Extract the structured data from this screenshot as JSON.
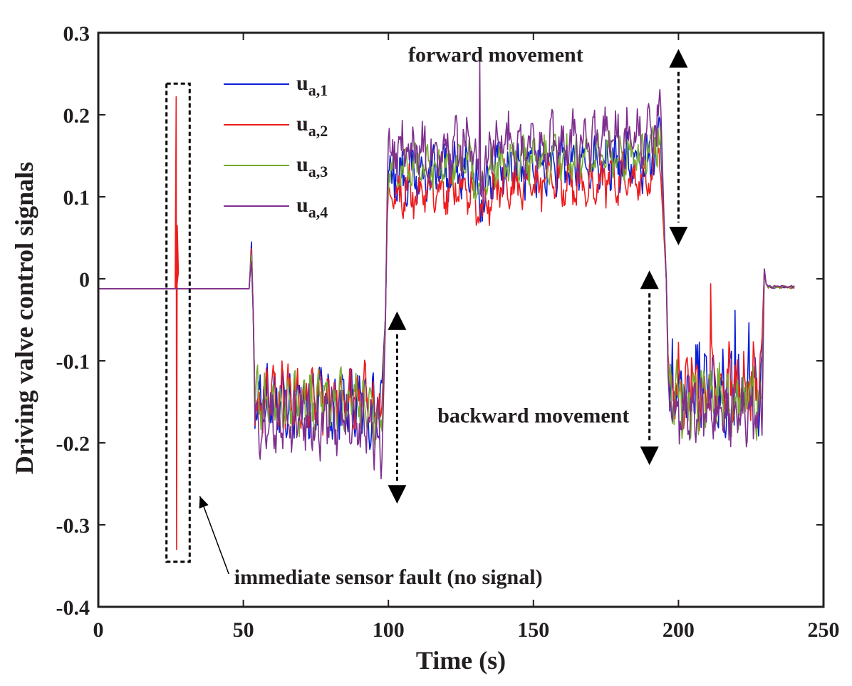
{
  "chart_data": {
    "type": "line",
    "xlabel": "Time (s)",
    "ylabel": "Driving valve control signals",
    "xlim": [
      0,
      250
    ],
    "ylim": [
      -0.4,
      0.3
    ],
    "xticks": [
      "0",
      "50",
      "100",
      "150",
      "200",
      "250"
    ],
    "yticks": [
      "0.3",
      "0.2",
      "0.1",
      "0",
      "-0.1",
      "-0.2",
      "-0.3",
      "-0.4"
    ],
    "grid": false,
    "legend_position": "top-left",
    "series": [
      {
        "name": "u_a,1",
        "base": "u",
        "sub": "a,1",
        "color": "#0a1fd6",
        "fault": false,
        "levels": {
          "idle": -0.012,
          "backward": -0.15,
          "forward": 0.125,
          "backward2": -0.135,
          "end": -0.01
        },
        "noise": {
          "backward": 0.028,
          "forward": 0.022,
          "backward2": 0.035
        }
      },
      {
        "name": "u_a,2",
        "base": "u",
        "sub": "a,2",
        "color": "#ee1c1c",
        "fault": true,
        "levels": {
          "idle": -0.012,
          "backward": -0.145,
          "forward": 0.105,
          "backward2": -0.13,
          "end": -0.01
        },
        "noise": {
          "backward": 0.026,
          "forward": 0.02,
          "backward2": 0.032
        }
      },
      {
        "name": "u_a,3",
        "base": "u",
        "sub": "a,3",
        "color": "#77ac30",
        "fault": false,
        "levels": {
          "idle": -0.012,
          "backward": -0.15,
          "forward": 0.135,
          "backward2": -0.145,
          "end": -0.01
        },
        "noise": {
          "backward": 0.024,
          "forward": 0.018,
          "backward2": 0.03
        }
      },
      {
        "name": "u_a,4",
        "base": "u",
        "sub": "a,4",
        "color": "#7e2f8e",
        "fault": false,
        "levels": {
          "idle": -0.012,
          "backward": -0.175,
          "forward": 0.155,
          "backward2": -0.165,
          "end": -0.01
        },
        "noise": {
          "backward": 0.026,
          "forward": 0.024,
          "backward2": 0.026
        }
      }
    ],
    "phases": [
      {
        "label": "idle",
        "x": [
          0,
          52
        ]
      },
      {
        "label": "backward",
        "x": [
          54,
          98
        ]
      },
      {
        "label": "forward",
        "x": [
          100,
          194
        ]
      },
      {
        "label": "backward2",
        "x": [
          197,
          229
        ]
      },
      {
        "label": "end",
        "x": [
          231,
          240
        ]
      }
    ],
    "fault_spike": {
      "x": 27,
      "min": -0.33,
      "max": 0.222
    },
    "fault_box": {
      "x": [
        23.5,
        31.5
      ],
      "y": [
        -0.345,
        0.238
      ]
    },
    "annotations": [
      {
        "text": "forward movement",
        "x": 137,
        "y": 0.265
      },
      {
        "text": "backward movement",
        "x": 150,
        "y": -0.175
      },
      {
        "text": "immediate sensor fault (no signal)",
        "x": 100,
        "y": -0.372
      }
    ],
    "double_arrows": [
      {
        "x": 103,
        "y1": -0.052,
        "y2": -0.262
      },
      {
        "x": 190,
        "y1": -0.002,
        "y2": -0.215
      },
      {
        "x": 200,
        "y1": 0.268,
        "y2": 0.053
      }
    ],
    "pointer_arrow": {
      "from": [
        45,
        -0.36
      ],
      "to": [
        35,
        -0.265
      ]
    }
  }
}
